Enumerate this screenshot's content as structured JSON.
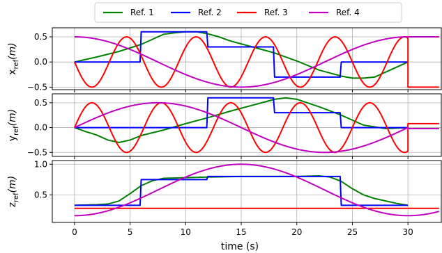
{
  "chart_data": {
    "type": "line",
    "xlabel": "time (s)",
    "legend": {
      "placement": "top-center",
      "entries": [
        {
          "label": "Ref. 1",
          "color": "#008000"
        },
        {
          "label": "Ref. 2",
          "color": "#0000ff"
        },
        {
          "label": "Ref. 3",
          "color": "#ff0000"
        },
        {
          "label": "Ref. 4",
          "color": "#bf00bf"
        }
      ]
    },
    "xlim": [
      -2,
      33
    ],
    "xticks": [
      0,
      5,
      10,
      15,
      20,
      25,
      30
    ],
    "grid": true,
    "subplots": [
      {
        "ylabel_main": "x",
        "ylabel_sub": "ref",
        "ylabel_tail": "(m)",
        "ylim": [
          -0.55,
          0.68
        ],
        "yticks": [
          0.5,
          0.0,
          -0.5
        ],
        "ytick_labels": [
          "0.5",
          "0.0",
          "−0.5"
        ],
        "series": [
          {
            "name": "Ref. 1",
            "color": "#008000",
            "points": [
              [
                0,
                0
              ],
              [
                2,
                0.1
              ],
              [
                4,
                0.21
              ],
              [
                6,
                0.35
              ],
              [
                7,
                0.45
              ],
              [
                8,
                0.55
              ],
              [
                9,
                0.58
              ],
              [
                10,
                0.6
              ],
              [
                11,
                0.6
              ],
              [
                12,
                0.56
              ],
              [
                13,
                0.5
              ],
              [
                14,
                0.42
              ],
              [
                16,
                0.3
              ],
              [
                18,
                0.18
              ],
              [
                20,
                0.02
              ],
              [
                22,
                -0.16
              ],
              [
                24,
                -0.28
              ],
              [
                25,
                -0.32
              ],
              [
                26,
                -0.32
              ],
              [
                27,
                -0.3
              ],
              [
                28,
                -0.2
              ],
              [
                29,
                -0.1
              ],
              [
                30,
                0
              ]
            ]
          },
          {
            "name": "Ref. 2",
            "color": "#0000ff",
            "points": [
              [
                0,
                0
              ],
              [
                5.9,
                0
              ],
              [
                6,
                0.6
              ],
              [
                11.9,
                0.6
              ],
              [
                12,
                0.3
              ],
              [
                17.9,
                0.3
              ],
              [
                18,
                -0.3
              ],
              [
                23.9,
                -0.3
              ],
              [
                24,
                0
              ],
              [
                30,
                0
              ]
            ]
          },
          {
            "name": "Ref. 3",
            "color": "#ff0000",
            "fn": "sine",
            "amp": -0.5,
            "period": 6.25,
            "phase": 0,
            "x0": 0,
            "x1": 30,
            "tail": [
              [
                30,
                -0.5
              ],
              [
                32.8,
                -0.5
              ]
            ]
          },
          {
            "name": "Ref. 4",
            "color": "#bf00bf",
            "fn": "cosine",
            "amp": 0.5,
            "period": 30,
            "x0": 0,
            "x1": 30,
            "tail": [
              [
                30,
                0.5
              ],
              [
                32.8,
                0.5
              ]
            ]
          }
        ]
      },
      {
        "ylabel_main": "y",
        "ylabel_sub": "ref",
        "ylabel_tail": "(m)",
        "ylim": [
          -0.58,
          0.68
        ],
        "yticks": [
          0.5,
          0.0,
          -0.5
        ],
        "ytick_labels": [
          "0.5",
          "0.0",
          "−0.5"
        ],
        "series": [
          {
            "name": "Ref. 1",
            "color": "#008000",
            "points": [
              [
                0,
                0
              ],
              [
                1,
                -0.08
              ],
              [
                2,
                -0.15
              ],
              [
                3,
                -0.25
              ],
              [
                4,
                -0.3
              ],
              [
                5,
                -0.25
              ],
              [
                6,
                -0.16
              ],
              [
                8,
                -0.05
              ],
              [
                10,
                0.08
              ],
              [
                12,
                0.2
              ],
              [
                14,
                0.33
              ],
              [
                16,
                0.45
              ],
              [
                18,
                0.57
              ],
              [
                19,
                0.6
              ],
              [
                20,
                0.57
              ],
              [
                22,
                0.42
              ],
              [
                24,
                0.25
              ],
              [
                26,
                0.05
              ],
              [
                28,
                -0.02
              ],
              [
                30,
                0
              ]
            ]
          },
          {
            "name": "Ref. 2",
            "color": "#0000ff",
            "points": [
              [
                0,
                0
              ],
              [
                11.9,
                0
              ],
              [
                12,
                0.6
              ],
              [
                17.9,
                0.6
              ],
              [
                18,
                0.3
              ],
              [
                23.9,
                0.3
              ],
              [
                24,
                0
              ],
              [
                30,
                0
              ]
            ]
          },
          {
            "name": "Ref. 3",
            "color": "#ff0000",
            "fn": "sine",
            "amp": 0.5,
            "period": 6.25,
            "phase": 0,
            "x0": 0,
            "x1": 30,
            "tail": [
              [
                30,
                0.08
              ],
              [
                32.8,
                0.08
              ]
            ]
          },
          {
            "name": "Ref. 4",
            "color": "#bf00bf",
            "fn": "sine",
            "amp": 0.5,
            "period": 30,
            "x0": 0,
            "x1": 30,
            "tail": [
              [
                30,
                -0.02
              ],
              [
                32.8,
                -0.02
              ]
            ]
          }
        ]
      },
      {
        "ylabel_main": "z",
        "ylabel_sub": "ref",
        "ylabel_tail": "(m)",
        "ylim": [
          0.05,
          1.06
        ],
        "yticks": [
          1.0,
          0.5
        ],
        "ytick_labels": [
          "1.0",
          "0.5"
        ],
        "series": [
          {
            "name": "Ref. 1",
            "color": "#008000",
            "points": [
              [
                0,
                0.33
              ],
              [
                2,
                0.34
              ],
              [
                3,
                0.35
              ],
              [
                4,
                0.4
              ],
              [
                5,
                0.52
              ],
              [
                6,
                0.65
              ],
              [
                7,
                0.73
              ],
              [
                8,
                0.77
              ],
              [
                10,
                0.78
              ],
              [
                12,
                0.79
              ],
              [
                15,
                0.8
              ],
              [
                20,
                0.8
              ],
              [
                22,
                0.81
              ],
              [
                23,
                0.79
              ],
              [
                24,
                0.72
              ],
              [
                25,
                0.6
              ],
              [
                26,
                0.5
              ],
              [
                27,
                0.44
              ],
              [
                28,
                0.4
              ],
              [
                29,
                0.36
              ],
              [
                30,
                0.33
              ]
            ]
          },
          {
            "name": "Ref. 2",
            "color": "#0000ff",
            "points": [
              [
                0,
                0.33
              ],
              [
                5.9,
                0.33
              ],
              [
                6,
                0.75
              ],
              [
                11.9,
                0.75
              ],
              [
                12,
                0.8
              ],
              [
                23.9,
                0.8
              ],
              [
                24,
                0.33
              ],
              [
                30,
                0.33
              ]
            ]
          },
          {
            "name": "Ref. 3",
            "color": "#ff0000",
            "points": [
              [
                0,
                0.28
              ],
              [
                32.8,
                0.28
              ]
            ]
          },
          {
            "name": "Ref. 4",
            "color": "#bf00bf",
            "fn": "zbell",
            "x0": 0,
            "x1": 32.8
          }
        ]
      }
    ]
  }
}
